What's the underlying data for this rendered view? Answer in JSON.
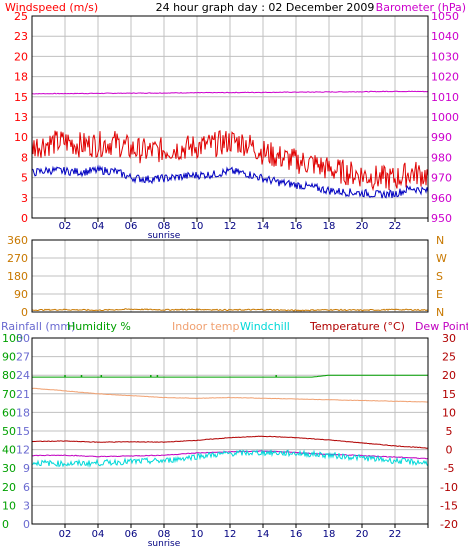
{
  "colors": {
    "grid": "#c0c0c0",
    "frame": "#000000",
    "windspeed": "#ff0000",
    "gust": "#e00000",
    "windavg": "#0000c0",
    "barometer": "#cc00cc",
    "winddir": "#c87800",
    "rainfall": "#6a6ad0",
    "humidity": "#00a000",
    "indoor": "#f0a070",
    "windchill": "#00d8d8",
    "temperature": "#b00000",
    "dewpoint": "#c000c0",
    "rainline": "#4040ff"
  },
  "chart_data": [
    {
      "type": "line",
      "title": "24 hour graph day : 02 December 2009",
      "left_axis_label": "Windspeed (m/s)",
      "right_axis_label": "Barometer (hPa)",
      "left_ticks": [
        "25",
        "23",
        "20",
        "18",
        "15",
        "13",
        "10",
        "8",
        "5",
        "3",
        "0"
      ],
      "right_ticks": [
        "1050",
        "1040",
        "1030",
        "1020",
        "1010",
        "1000",
        "990",
        "980",
        "970",
        "960",
        "950"
      ],
      "ylim_left": [
        0,
        25
      ],
      "ylim_right": [
        950,
        1050
      ],
      "x_ticks": [
        "02",
        "04",
        "06",
        "08",
        "10",
        "12",
        "14",
        "16",
        "18",
        "20",
        "22"
      ],
      "x_annotation": "sunrise",
      "series": [
        {
          "name": "Windspeed (m/s)",
          "kind": "gust",
          "x": [
            0,
            1,
            2,
            3,
            4,
            5,
            6,
            7,
            8,
            9,
            10,
            11,
            12,
            13,
            14,
            15,
            16,
            17,
            18,
            19,
            20,
            21,
            22,
            23,
            24
          ],
          "values": [
            8.2,
            8.6,
            8.8,
            8.4,
            8.5,
            8.7,
            7.9,
            7.6,
            7.8,
            8.0,
            8.2,
            8.4,
            8.9,
            8.6,
            7.5,
            6.9,
            6.4,
            6.1,
            5.4,
            5.0,
            4.7,
            4.3,
            4.2,
            5.0,
            4.6
          ]
        },
        {
          "name": "Windspeed (m/s)",
          "kind": "average",
          "x": [
            0,
            1,
            2,
            3,
            4,
            5,
            6,
            7,
            8,
            9,
            10,
            11,
            12,
            13,
            14,
            15,
            16,
            17,
            18,
            19,
            20,
            21,
            22,
            23,
            24
          ],
          "values": [
            5.6,
            5.9,
            5.8,
            5.7,
            5.9,
            5.8,
            5.0,
            4.8,
            4.9,
            5.1,
            5.3,
            5.4,
            5.8,
            5.5,
            4.9,
            4.4,
            4.1,
            3.8,
            3.4,
            3.2,
            3.1,
            2.9,
            3.0,
            3.7,
            3.3
          ]
        },
        {
          "name": "Barometer (hPa)",
          "x": [
            0,
            2,
            4,
            6,
            8,
            10,
            12,
            14,
            16,
            18,
            20,
            22,
            24
          ],
          "values": [
            1011.5,
            1011.6,
            1011.7,
            1011.8,
            1011.9,
            1012.0,
            1012.1,
            1012.2,
            1012.3,
            1012.4,
            1012.5,
            1012.7,
            1012.6
          ]
        }
      ]
    },
    {
      "type": "line",
      "left_ticks": [
        "360",
        "270",
        "180",
        "90",
        "0"
      ],
      "right_ticks": [
        "N",
        "W",
        "S",
        "E",
        "N"
      ],
      "ylim": [
        0,
        360
      ],
      "series": [
        {
          "name": "Wind direction",
          "x": [
            0,
            2,
            4,
            6,
            8,
            10,
            12,
            14,
            16,
            18,
            20,
            22,
            24
          ],
          "values": [
            10,
            12,
            9,
            14,
            11,
            13,
            10,
            12,
            8,
            11,
            9,
            12,
            10
          ]
        }
      ]
    },
    {
      "type": "line",
      "legend": [
        "Rainfall (mm)",
        "Humidity %",
        "Indoor temp",
        "Windchill",
        "Temperature (°C)",
        "Dew Point"
      ],
      "left_outer_ticks": [
        "100",
        "90",
        "80",
        "70",
        "60",
        "50",
        "40",
        "30",
        "20",
        "10",
        "0"
      ],
      "left_inner_ticks": [
        "30",
        "27",
        "24",
        "21",
        "18",
        "15",
        "12",
        "9",
        "6",
        "3",
        "0"
      ],
      "right_ticks": [
        "30",
        "25",
        "20",
        "15",
        "10",
        "5",
        "0",
        "-5",
        "-10",
        "-15",
        "-20"
      ],
      "ylim_humidity": [
        0,
        100
      ],
      "ylim_rain": [
        0,
        30
      ],
      "ylim_temp": [
        -20,
        30
      ],
      "x_ticks": [
        "02",
        "04",
        "06",
        "08",
        "10",
        "12",
        "14",
        "16",
        "18",
        "20",
        "22"
      ],
      "x_annotation": "sunrise",
      "series": [
        {
          "name": "Humidity %",
          "x": [
            0,
            2,
            4,
            6,
            8,
            10,
            12,
            14,
            16,
            17,
            18,
            20,
            22,
            24
          ],
          "values": [
            79,
            79,
            79,
            79,
            79,
            79,
            79,
            79,
            79,
            79,
            80,
            80,
            80,
            80
          ]
        },
        {
          "name": "Indoor temp",
          "x": [
            0,
            2,
            4,
            6,
            8,
            10,
            12,
            14,
            16,
            18,
            20,
            22,
            24
          ],
          "values": [
            16.5,
            15.8,
            15.0,
            14.5,
            14.0,
            13.8,
            14.0,
            13.8,
            13.6,
            13.4,
            13.2,
            13.0,
            12.8
          ]
        },
        {
          "name": "Temperature (°C)",
          "x": [
            0,
            2,
            4,
            6,
            8,
            10,
            12,
            14,
            16,
            18,
            20,
            22,
            24
          ],
          "values": [
            2.2,
            2.3,
            2.0,
            2.1,
            2.0,
            2.5,
            3.2,
            3.6,
            3.2,
            2.6,
            1.8,
            1.0,
            0.4
          ]
        },
        {
          "name": "Dew Point",
          "x": [
            0,
            2,
            4,
            6,
            8,
            10,
            12,
            14,
            16,
            18,
            20,
            22,
            24
          ],
          "values": [
            -1.6,
            -1.5,
            -1.9,
            -1.7,
            -1.5,
            -0.9,
            -0.6,
            -0.4,
            -0.8,
            -1.3,
            -1.6,
            -2.0,
            -2.4
          ]
        },
        {
          "name": "Windchill",
          "x": [
            0,
            2,
            4,
            6,
            8,
            10,
            12,
            14,
            16,
            18,
            20,
            22,
            24
          ],
          "values": [
            -3.5,
            -3.8,
            -3.6,
            -3.2,
            -3.0,
            -1.8,
            -1.0,
            -0.8,
            -1.0,
            -1.5,
            -2.2,
            -3.0,
            -3.6
          ]
        },
        {
          "name": "Rainfall (mm)",
          "x": [
            0,
            24
          ],
          "values": [
            0,
            0
          ]
        }
      ]
    }
  ]
}
